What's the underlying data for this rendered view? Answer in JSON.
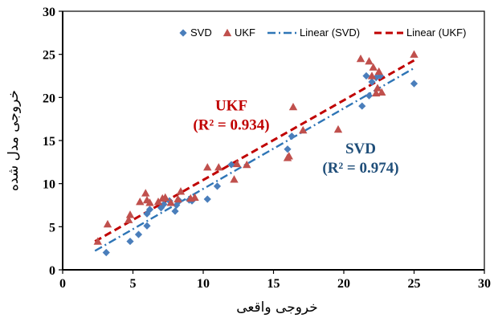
{
  "chart_data": {
    "type": "scatter",
    "xlabel": "خروجی واقعی",
    "ylabel": "خروجی مدل شده",
    "xlim": [
      0,
      30
    ],
    "ylim": [
      0,
      30
    ],
    "xticks": [
      0,
      5,
      10,
      15,
      20,
      25,
      30
    ],
    "yticks": [
      0,
      5,
      10,
      15,
      20,
      25,
      30
    ],
    "grid": false,
    "legend_position": "top-right",
    "legend": [
      "SVD",
      "UKF",
      "Linear (SVD)",
      "Linear (UKF)"
    ],
    "series": [
      {
        "name": "SVD",
        "marker": "diamond",
        "color": "#4a7ebb",
        "points": [
          [
            3.1,
            2.0
          ],
          [
            4.8,
            3.3
          ],
          [
            5.4,
            4.1
          ],
          [
            6.0,
            5.1
          ],
          [
            6.0,
            6.5
          ],
          [
            6.2,
            7.0
          ],
          [
            7.0,
            7.2
          ],
          [
            7.2,
            7.6
          ],
          [
            7.6,
            8.0
          ],
          [
            8.0,
            6.8
          ],
          [
            8.1,
            7.5
          ],
          [
            8.3,
            8.0
          ],
          [
            9.0,
            8.1
          ],
          [
            9.2,
            8.0
          ],
          [
            10.3,
            8.2
          ],
          [
            11.0,
            9.7
          ],
          [
            12.0,
            12.2
          ],
          [
            16.0,
            14.0
          ],
          [
            16.3,
            15.5
          ],
          [
            21.3,
            19.0
          ],
          [
            21.6,
            22.5
          ],
          [
            21.8,
            20.2
          ],
          [
            22.0,
            21.8
          ],
          [
            22.3,
            22.3
          ],
          [
            22.6,
            22.5
          ],
          [
            25.0,
            21.6
          ]
        ]
      },
      {
        "name": "UKF",
        "marker": "triangle",
        "color": "#c0504d",
        "points": [
          [
            2.5,
            3.3
          ],
          [
            3.2,
            5.3
          ],
          [
            4.7,
            5.8
          ],
          [
            4.8,
            6.4
          ],
          [
            5.5,
            7.9
          ],
          [
            5.9,
            8.9
          ],
          [
            6.0,
            8.1
          ],
          [
            6.2,
            7.8
          ],
          [
            6.8,
            7.9
          ],
          [
            7.1,
            8.3
          ],
          [
            7.3,
            8.4
          ],
          [
            7.7,
            7.8
          ],
          [
            8.2,
            8.2
          ],
          [
            8.4,
            9.1
          ],
          [
            9.1,
            8.3
          ],
          [
            9.4,
            8.4
          ],
          [
            10.3,
            11.9
          ],
          [
            11.1,
            11.9
          ],
          [
            12.2,
            10.5
          ],
          [
            12.4,
            12.3
          ],
          [
            13.1,
            12.2
          ],
          [
            16.0,
            13.0
          ],
          [
            16.1,
            13.2
          ],
          [
            16.4,
            18.9
          ],
          [
            17.1,
            16.2
          ],
          [
            19.6,
            16.3
          ],
          [
            21.2,
            24.5
          ],
          [
            21.8,
            24.2
          ],
          [
            22.0,
            22.5
          ],
          [
            22.1,
            23.5
          ],
          [
            22.3,
            20.5
          ],
          [
            22.4,
            21.1
          ],
          [
            22.5,
            23.0
          ],
          [
            22.7,
            20.6
          ],
          [
            25.0,
            25.0
          ]
        ]
      }
    ],
    "trendlines": [
      {
        "name": "Linear (SVD)",
        "color": "#2e75b6",
        "style": "dash-dot",
        "from": [
          2.3,
          2.2
        ],
        "to": [
          25.0,
          23.4
        ]
      },
      {
        "name": "Linear (UKF)",
        "color": "#c00000",
        "style": "dashed",
        "from": [
          2.3,
          3.3
        ],
        "to": [
          25.0,
          24.3
        ]
      }
    ],
    "annotations": [
      {
        "id": "ukf",
        "lines": [
          "UKF",
          "(R² = 0.934)"
        ],
        "color": "#c00000",
        "at": [
          12.0,
          18.5
        ]
      },
      {
        "id": "svd",
        "lines": [
          "SVD",
          "(R² = 0.974)"
        ],
        "color": "#1f4e79",
        "at": [
          21.2,
          13.5
        ]
      }
    ]
  }
}
